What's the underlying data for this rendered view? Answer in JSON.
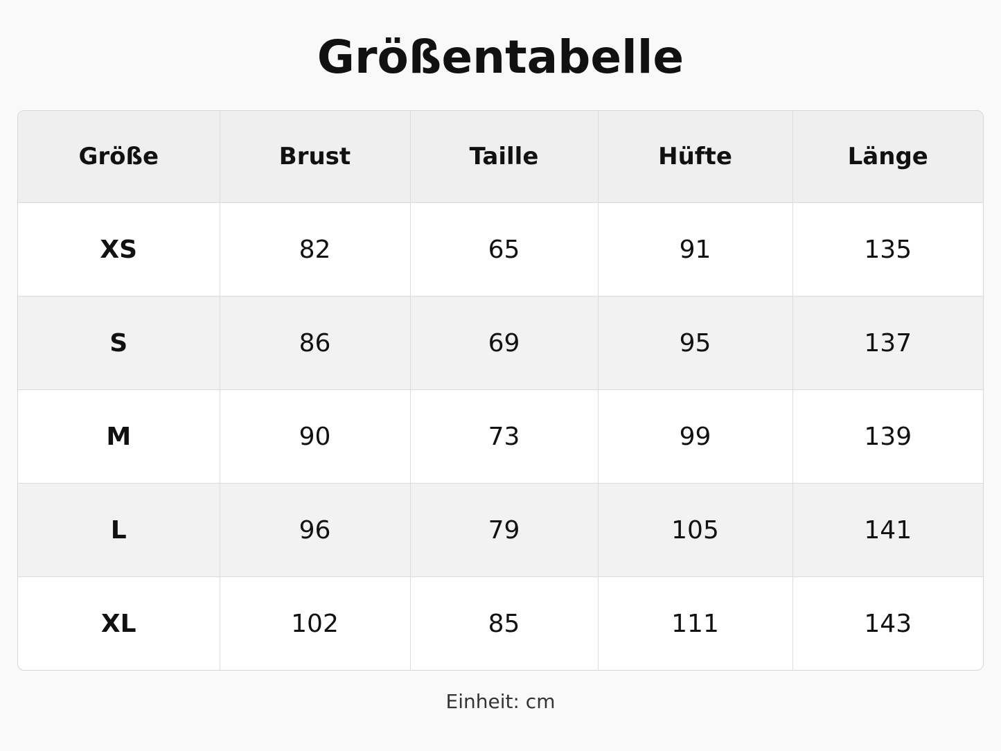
{
  "header": {
    "title": "Größentabelle"
  },
  "table": {
    "columns": [
      "Größe",
      "Brust",
      "Taille",
      "Hüfte",
      "Länge"
    ],
    "rows": [
      [
        "XS",
        82,
        65,
        91,
        135
      ],
      [
        "S",
        86,
        69,
        95,
        137
      ],
      [
        "M",
        90,
        73,
        99,
        139
      ],
      [
        "L",
        96,
        79,
        105,
        141
      ],
      [
        "XL",
        102,
        85,
        111,
        143
      ]
    ]
  },
  "footer": {
    "note": "Einheit: cm"
  }
}
